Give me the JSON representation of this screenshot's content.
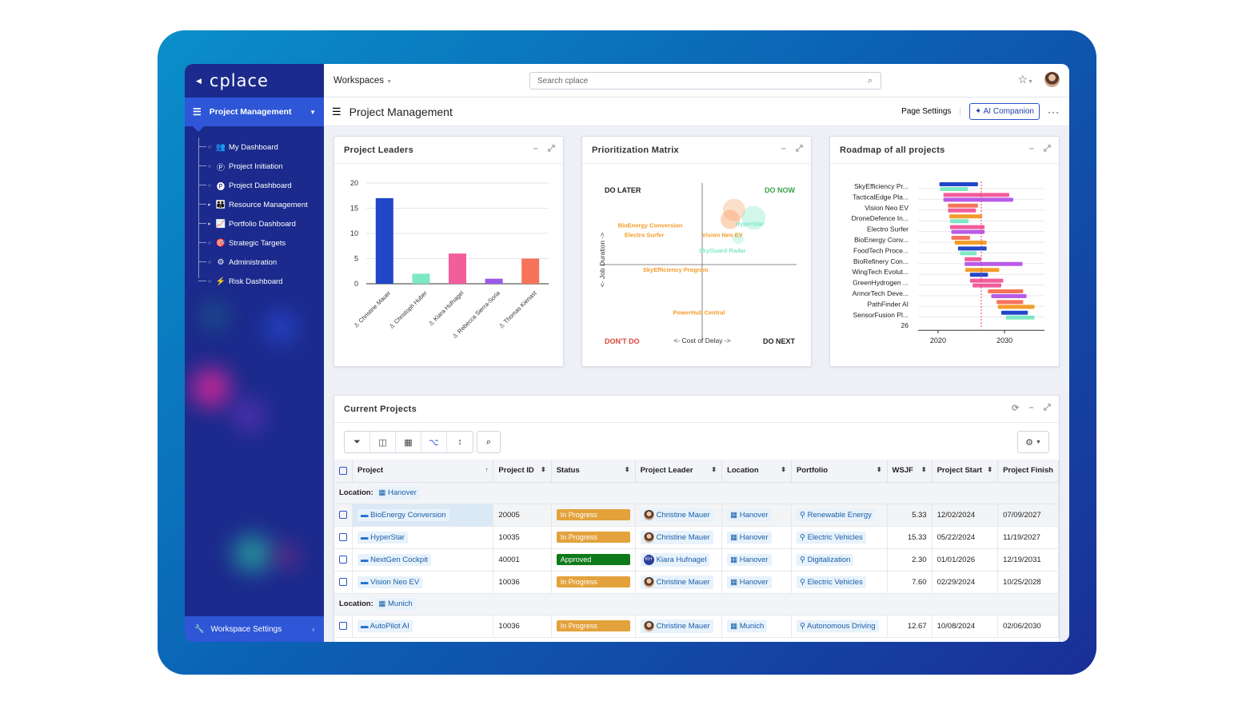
{
  "app": {
    "logo": "cplace",
    "workspace_label": "Workspaces",
    "search_placeholder": "Search cplace"
  },
  "sidebar": {
    "section": "Project Management",
    "items": [
      {
        "label": "My Dashboard",
        "icon": "users-icon",
        "glyph": "👥",
        "expand": false
      },
      {
        "label": "Project Initiation",
        "icon": "p-circle-icon",
        "glyph": "Ⓟ",
        "expand": false
      },
      {
        "label": "Project Dashboard",
        "icon": "p-circle-filled-icon",
        "glyph": "🅟",
        "expand": false
      },
      {
        "label": "Resource Management",
        "icon": "group-icon",
        "glyph": "👪",
        "expand": true
      },
      {
        "label": "Portfolio Dashboard",
        "icon": "line-chart-icon",
        "glyph": "📈",
        "expand": true
      },
      {
        "label": "Strategic Targets",
        "icon": "target-icon",
        "glyph": "🎯",
        "expand": false
      },
      {
        "label": "Administration",
        "icon": "cogs-icon",
        "glyph": "⚙",
        "expand": false
      },
      {
        "label": "Risk Dashboard",
        "icon": "bolt-icon",
        "glyph": "⚡",
        "expand": false
      }
    ],
    "footer": "Workspace Settings"
  },
  "page": {
    "title": "Project Management",
    "settings_label": "Page Settings",
    "ai_label": "AI Companion"
  },
  "widgets": {
    "leaders_title": "Project Leaders",
    "matrix_title": "Prioritization Matrix",
    "roadmap_title": "Roadmap of all projects",
    "projects_title": "Current Projects"
  },
  "chart_data": [
    {
      "type": "bar",
      "categories": [
        "Christine Mauer",
        "Christoph Huber",
        "Kiara Hufnagel",
        "Rebecca Sierra-Soria",
        "Thomas Kienast"
      ],
      "values": [
        17,
        2,
        6,
        1,
        5
      ],
      "colors": [
        "#2146c7",
        "#7ee8c6",
        "#f25d9c",
        "#9b59e8",
        "#f6735a"
      ],
      "ylim": [
        0,
        20
      ],
      "yticks": [
        0,
        5,
        10,
        15,
        20
      ],
      "grid": true
    },
    {
      "type": "scatter",
      "quadrants": {
        "top_left": "DO LATER",
        "top_right": "DO NOW",
        "bottom_left": "DON'T DO",
        "bottom_right": "DO NEXT"
      },
      "xlabel": "<- Cost of Delay ->",
      "ylabel": "<- Job Duration ->",
      "points": [
        {
          "name": "BioEnergy Conversion",
          "x": 0.25,
          "y": 0.72,
          "color": "#f39c2b"
        },
        {
          "name": "Electro Surfer",
          "x": 0.22,
          "y": 0.66,
          "color": "#f39c2b"
        },
        {
          "name": "HyperStar",
          "x": 0.76,
          "y": 0.73,
          "color": "#7ee8c6"
        },
        {
          "name": "Vision Neo EV",
          "x": 0.62,
          "y": 0.66,
          "color": "#f39c2b"
        },
        {
          "name": "SkyGuard Radar",
          "x": 0.62,
          "y": 0.56,
          "color": "#7ee8c6"
        },
        {
          "name": "SkyEfficiency Program",
          "x": 0.38,
          "y": 0.44,
          "color": "#f39c2b"
        },
        {
          "name": "PowerHub Central",
          "x": 0.5,
          "y": 0.17,
          "color": "#f39c2b"
        }
      ]
    },
    {
      "type": "bar",
      "orientation": "horizontal-gantt",
      "categories": [
        "SkyEfficiency Pr...",
        "TacticalEdge Pla...",
        "Vision Neo EV",
        "DroneDefence In...",
        "Electro Surfer",
        "BioEnergy Conv...",
        "FoodTech Proce...",
        "BioRefinery Con...",
        "WingTech Evolut...",
        "GreenHydrogen ...",
        "ArmorTech Deve...",
        "PathFinder AI",
        "SensorFusion Pl..."
      ],
      "extra_label": "26",
      "xticks": [
        "2020",
        "2030"
      ],
      "xlim": [
        2017,
        2036
      ],
      "bars": [
        {
          "row": 0,
          "start": 2020.2,
          "end": 2026.0,
          "color": "#2146c7"
        },
        {
          "row": 0,
          "start": 2020.3,
          "end": 2024.5,
          "color": "#7ee8c6"
        },
        {
          "row": 1,
          "start": 2020.8,
          "end": 2030.7,
          "color": "#f25d9c"
        },
        {
          "row": 1,
          "start": 2020.8,
          "end": 2031.3,
          "color": "#b85be8"
        },
        {
          "row": 2,
          "start": 2021.5,
          "end": 2026.0,
          "color": "#f6735a"
        },
        {
          "row": 2,
          "start": 2021.5,
          "end": 2025.7,
          "color": "#f25d9c"
        },
        {
          "row": 3,
          "start": 2021.7,
          "end": 2026.6,
          "color": "#f39c2b"
        },
        {
          "row": 3,
          "start": 2021.8,
          "end": 2024.6,
          "color": "#7ee8c6"
        },
        {
          "row": 4,
          "start": 2021.8,
          "end": 2027.0,
          "color": "#f25d9c"
        },
        {
          "row": 4,
          "start": 2022.0,
          "end": 2027.0,
          "color": "#b85be8"
        },
        {
          "row": 5,
          "start": 2022.0,
          "end": 2024.8,
          "color": "#f6735a"
        },
        {
          "row": 5,
          "start": 2022.5,
          "end": 2027.3,
          "color": "#f39c2b"
        },
        {
          "row": 6,
          "start": 2023.0,
          "end": 2027.3,
          "color": "#2146c7"
        },
        {
          "row": 6,
          "start": 2023.3,
          "end": 2025.8,
          "color": "#7ee8c6"
        },
        {
          "row": 7,
          "start": 2024.0,
          "end": 2026.5,
          "color": "#f25d9c"
        },
        {
          "row": 7,
          "start": 2024.0,
          "end": 2032.7,
          "color": "#b85be8"
        },
        {
          "row": 8,
          "start": 2024.1,
          "end": 2029.2,
          "color": "#f39c2b"
        },
        {
          "row": 8,
          "start": 2024.8,
          "end": 2027.5,
          "color": "#2146c7"
        },
        {
          "row": 9,
          "start": 2024.8,
          "end": 2029.8,
          "color": "#f25d9c"
        },
        {
          "row": 9,
          "start": 2025.2,
          "end": 2029.5,
          "color": "#f25d9c"
        },
        {
          "row": 10,
          "start": 2027.5,
          "end": 2032.8,
          "color": "#f6735a"
        },
        {
          "row": 10,
          "start": 2028.0,
          "end": 2033.3,
          "color": "#b85be8"
        },
        {
          "row": 11,
          "start": 2028.8,
          "end": 2032.8,
          "color": "#f6735a"
        },
        {
          "row": 11,
          "start": 2029.0,
          "end": 2034.5,
          "color": "#f39c2b"
        },
        {
          "row": 12,
          "start": 2029.5,
          "end": 2033.5,
          "color": "#2146c7"
        },
        {
          "row": 12,
          "start": 2030.2,
          "end": 2034.5,
          "color": "#7ee8c6"
        }
      ],
      "today": 2026.5
    }
  ],
  "table": {
    "columns": [
      "Project",
      "Project ID",
      "Status",
      "Project Leader",
      "Location",
      "Portfolio",
      "WSJF",
      "Project Start",
      "Project Finish"
    ],
    "group_label": "Location:",
    "groups": [
      {
        "name": "Hanover",
        "rows": [
          {
            "project": "BioEnergy Conversion",
            "id": "20005",
            "status": "In Progress",
            "leader": "Christine Mauer",
            "location": "Hanover",
            "portfolio": "Renewable Energy",
            "wsjf": "5.33",
            "start": "12/02/2024",
            "finish": "07/09/2027"
          },
          {
            "project": "HyperStar",
            "id": "10035",
            "status": "In Progress",
            "leader": "Christine Mauer",
            "location": "Hanover",
            "portfolio": "Electric Vehicles",
            "wsjf": "15.33",
            "start": "05/22/2024",
            "finish": "11/19/2027"
          },
          {
            "project": "NextGen Cockpit",
            "id": "40001",
            "status": "Approved",
            "leader": "Kiara Hufnagel",
            "location": "Hanover",
            "portfolio": "Digitalization",
            "wsjf": "2.30",
            "start": "01/01/2026",
            "finish": "12/19/2031"
          },
          {
            "project": "Vision Neo EV",
            "id": "10036",
            "status": "In Progress",
            "leader": "Christine Mauer",
            "location": "Hanover",
            "portfolio": "Electric Vehicles",
            "wsjf": "7.60",
            "start": "02/29/2024",
            "finish": "10/25/2028"
          }
        ]
      },
      {
        "name": "Munich",
        "rows": [
          {
            "project": "AutoPilot AI",
            "id": "10036",
            "status": "In Progress",
            "leader": "Christine Mauer",
            "location": "Munich",
            "portfolio": "Autonomous Driving",
            "wsjf": "12.67",
            "start": "10/08/2024",
            "finish": "02/06/2030"
          }
        ]
      }
    ],
    "status_colors": {
      "In Progress": "#e3a23b",
      "Approved": "#0f7a1a"
    }
  }
}
